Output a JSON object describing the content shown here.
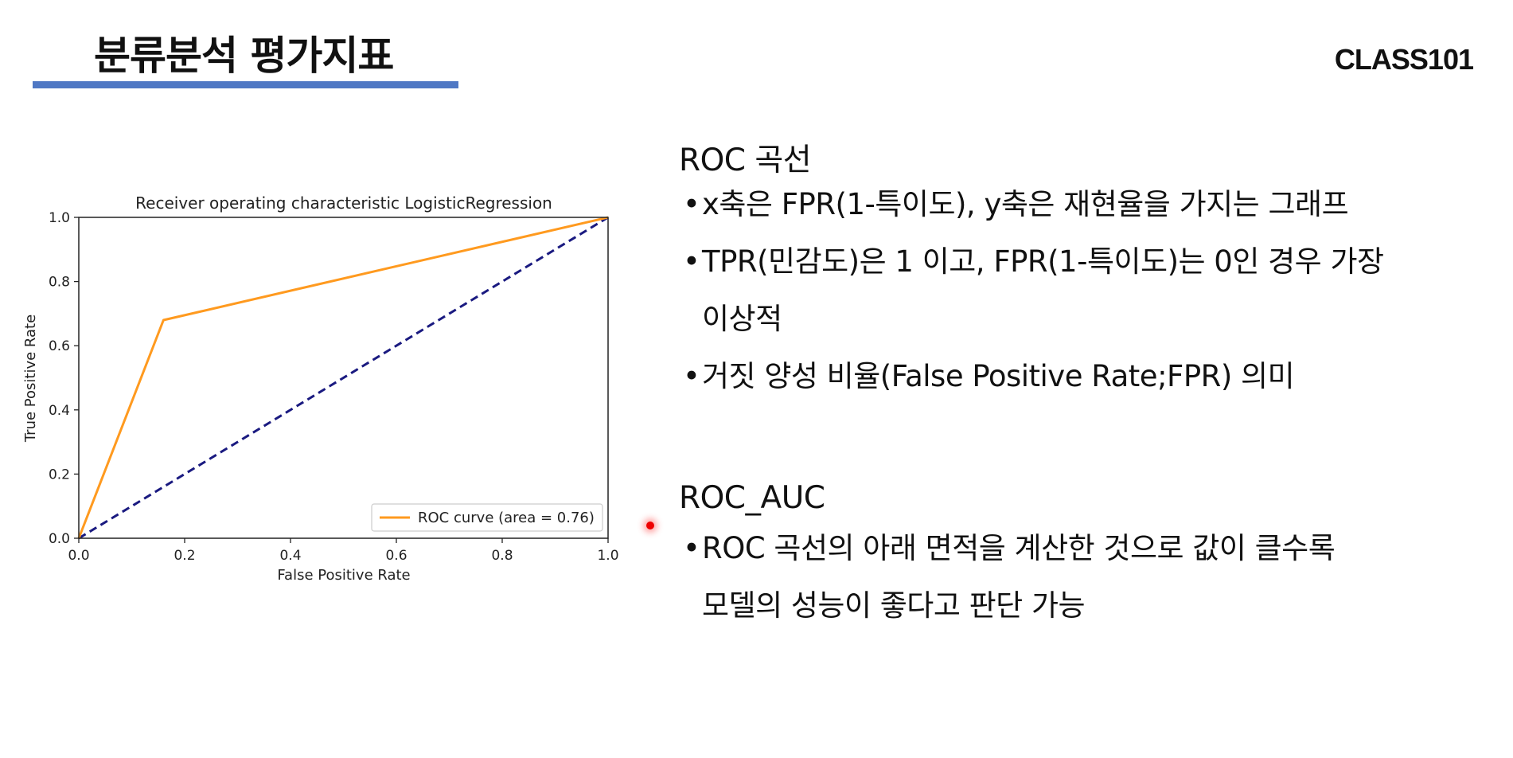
{
  "slide": {
    "title": "분류분석 평가지표",
    "brand": "CLASS101"
  },
  "text_panel": {
    "sections": [
      {
        "heading": "ROC 곡선",
        "bullets": [
          [
            "x축은 FPR(1-특이도), y축은 재현율을 가지는 그래프"
          ],
          [
            "TPR(민감도)은 1 이고, FPR(1-특이도)는 0인 경우 가장",
            "이상적"
          ],
          [
            "거짓 양성 비율(False Positive Rate;FPR) 의미"
          ]
        ]
      },
      {
        "heading": "ROC_AUC",
        "bullets": [
          [
            "ROC 곡선의 아래 면적을 계산한 것으로 값이 클수록",
            "모델의 성능이 좋다고 판단 가능"
          ]
        ]
      }
    ],
    "bullet_symbol": "•"
  },
  "chart_data": {
    "type": "line",
    "title": "Receiver operating characteristic LogisticRegression",
    "xlabel": "False Positive Rate",
    "ylabel": "True Positive Rate",
    "xlim": [
      0.0,
      1.0
    ],
    "ylim": [
      0.0,
      1.0
    ],
    "xticks": [
      "0.0",
      "0.2",
      "0.4",
      "0.6",
      "0.8",
      "1.0"
    ],
    "yticks": [
      "0.0",
      "0.2",
      "0.4",
      "0.6",
      "0.8",
      "1.0"
    ],
    "grid": false,
    "legend_position": "lower-right",
    "series": [
      {
        "name": "ROC curve (area = 0.76)",
        "color": "#ff9a1f",
        "style": "solid",
        "x": [
          0.0,
          0.16,
          1.0
        ],
        "y": [
          0.0,
          0.68,
          1.0
        ]
      },
      {
        "color": "#1a1a80",
        "style": "dashed",
        "x": [
          0.0,
          1.0
        ],
        "y": [
          0.0,
          1.0
        ]
      }
    ]
  }
}
